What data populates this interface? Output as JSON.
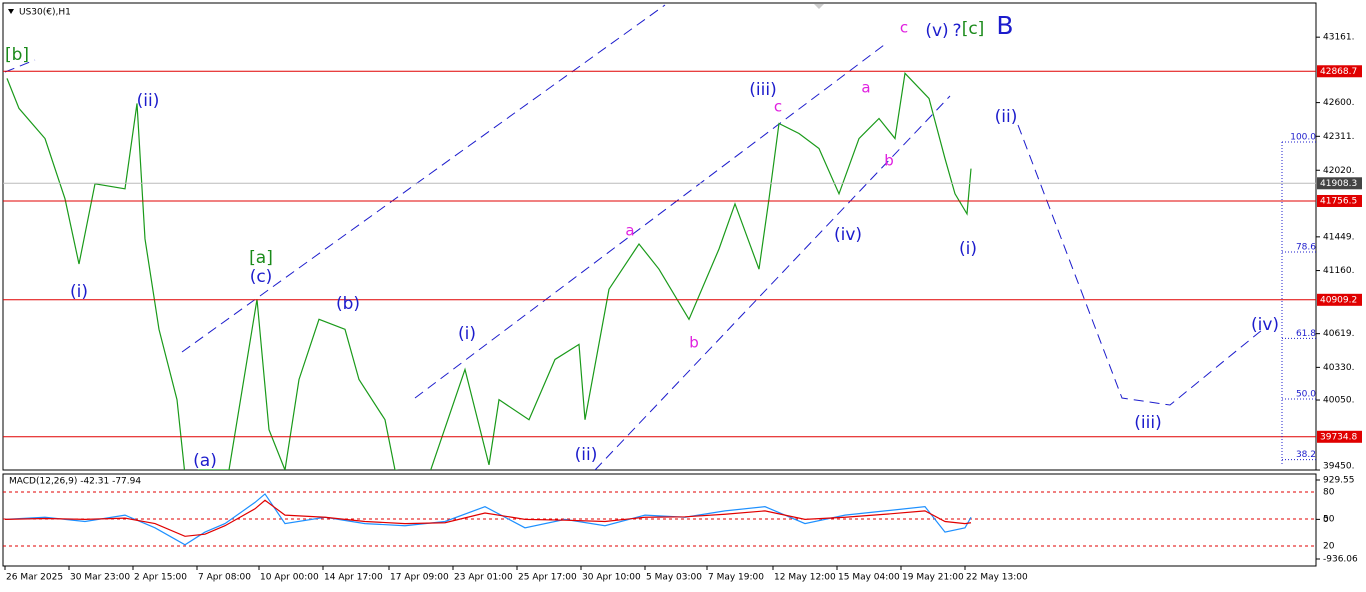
{
  "chart_data": [
    {
      "type": "line",
      "title": "US30(€),H1",
      "color": "#1a9a1a",
      "x": [
        1,
        7,
        20,
        30,
        37,
        45,
        60,
        66,
        70,
        77,
        86,
        90,
        97,
        112,
        126,
        132,
        140,
        147,
        157,
        170,
        177,
        190,
        195,
        212,
        230,
        242,
        247,
        262,
        275,
        287,
        290,
        302,
        317,
        327,
        342,
        357,
        365,
        377,
        382,
        387,
        397,
        407,
        417,
        427,
        437,
        445,
        450,
        462,
        470,
        475,
        481,
        483
      ],
      "values": [
        42808,
        42550,
        42292,
        41775,
        41216,
        41904,
        41861,
        42593,
        41431,
        40656,
        40053,
        39407,
        39450,
        39450,
        40914,
        39795,
        39450,
        40226,
        40742,
        40656,
        40226,
        39881,
        39450,
        39407,
        40312,
        39494,
        40053,
        39881,
        40398,
        40527,
        39881,
        41000,
        41388,
        41172,
        40742,
        41345,
        41732,
        41172,
        41775,
        42421,
        42335,
        42206,
        41818,
        42292,
        42464,
        42292,
        42851,
        42636,
        42120,
        41818,
        41646,
        42034
      ],
      "xlim": [
        0,
        655
      ],
      "xticks": [
        {
          "value": 0,
          "label": "26 Mar 2025"
        },
        {
          "value": 32,
          "label": "30 Mar 23:00"
        },
        {
          "value": 64,
          "label": "2 Apr 15:00"
        },
        {
          "value": 96,
          "label": "7 Apr 08:00"
        },
        {
          "value": 127,
          "label": "10 Apr 00:00"
        },
        {
          "value": 159,
          "label": "14 Apr 17:00"
        },
        {
          "value": 192,
          "label": "17 Apr 09:00"
        },
        {
          "value": 224,
          "label": "23 Apr 01:00"
        },
        {
          "value": 256,
          "label": "25 Apr 17:00"
        },
        {
          "value": 288,
          "label": "30 Apr 10:00"
        },
        {
          "value": 320,
          "label": "5 May 03:00"
        },
        {
          "value": 351,
          "label": "7 May 19:00"
        },
        {
          "value": 384,
          "label": "12 May 12:00"
        },
        {
          "value": 416,
          "label": "15 May 04:00"
        },
        {
          "value": 448,
          "label": "19 May 21:00"
        },
        {
          "value": 480,
          "label": "22 May 13:00"
        }
      ],
      "ylim": [
        39450,
        43454
      ],
      "yticks": [
        {
          "value": 43161,
          "label": "43161."
        },
        {
          "value": 42600,
          "label": "42600."
        },
        {
          "value": 42311,
          "label": "42311."
        },
        {
          "value": 42020,
          "label": "42020."
        },
        {
          "value": 41449,
          "label": "41449."
        },
        {
          "value": 41160,
          "label": "41160."
        },
        {
          "value": 40619,
          "label": "40619."
        },
        {
          "value": 40330,
          "label": "40330."
        },
        {
          "value": 40050,
          "label": "40050."
        },
        {
          "value": 39450,
          "label": "39450."
        }
      ],
      "hlines": [
        42868.7,
        41908.3,
        41756.5,
        40909.2,
        39734.8
      ],
      "hline_colors": [
        "#e00000",
        "#444444",
        "#e00000",
        "#e00000",
        "#e00000"
      ],
      "fib_levels": [
        {
          "value": 100,
          "label": "100.0"
        },
        {
          "value": 78.6,
          "label": "78.6"
        },
        {
          "value": 61.8,
          "label": "61.8"
        },
        {
          "value": 50,
          "label": "50.0"
        },
        {
          "value": 38.2,
          "label": "38.2"
        }
      ],
      "annotations": [
        {
          "text": "[b]",
          "color": "#1a8a1a"
        },
        {
          "text": "(i)",
          "color": "#1c1ccc"
        },
        {
          "text": "(ii)",
          "color": "#1c1ccc"
        },
        {
          "text": "(a)",
          "color": "#1c1ccc"
        },
        {
          "text": "[a]",
          "color": "#1a8a1a"
        },
        {
          "text": "(c)",
          "color": "#1c1ccc"
        },
        {
          "text": "(b)",
          "color": "#1c1ccc"
        },
        {
          "text": "(i)",
          "color": "#1c1ccc"
        },
        {
          "text": "(ii)",
          "color": "#1c1ccc"
        },
        {
          "text": "a",
          "color": "#e020e0"
        },
        {
          "text": "b",
          "color": "#e020e0"
        },
        {
          "text": "(iii)",
          "color": "#1c1ccc"
        },
        {
          "text": "c",
          "color": "#e020e0"
        },
        {
          "text": "(iv)",
          "color": "#1c1ccc"
        },
        {
          "text": "a",
          "color": "#e020e0"
        },
        {
          "text": "b",
          "color": "#e020e0"
        },
        {
          "text": "c",
          "color": "#e020e0"
        },
        {
          "text": "(v)",
          "color": "#1c1ccc"
        },
        {
          "text": "?",
          "color": "#1c1ccc"
        },
        {
          "text": "[c]",
          "color": "#1a8a1a"
        },
        {
          "text": "B",
          "color": "#1c1ccc"
        },
        {
          "text": "(i)",
          "color": "#1c1ccc"
        },
        {
          "text": "(ii)",
          "color": "#1c1ccc"
        },
        {
          "text": "(iii)",
          "color": "#1c1ccc"
        },
        {
          "text": "(iv)",
          "color": "#1c1ccc"
        }
      ]
    },
    {
      "type": "line",
      "title": "MACD(12,26,9) -42.31 -77.94",
      "x": [
        0,
        20,
        40,
        60,
        75,
        90,
        100,
        110,
        125,
        130,
        140,
        160,
        180,
        200,
        220,
        240,
        260,
        280,
        300,
        320,
        340,
        360,
        380,
        400,
        420,
        440,
        460,
        470,
        480,
        483
      ],
      "series": [
        {
          "color": "#1e90ff",
          "values": [
            0,
            50,
            -50,
            100,
            -200,
            -600,
            -300,
            -100,
            400,
            600,
            -100,
            50,
            -100,
            -150,
            -50,
            300,
            -200,
            0,
            -150,
            100,
            50,
            200,
            300,
            -100,
            100,
            200,
            300,
            -300,
            -200,
            50
          ]
        },
        {
          "color": "#e00000",
          "values": [
            0,
            20,
            0,
            30,
            -100,
            -400,
            -350,
            -150,
            250,
            450,
            100,
            50,
            -50,
            -100,
            -80,
            150,
            0,
            -20,
            -50,
            50,
            60,
            120,
            200,
            0,
            50,
            120,
            200,
            -50,
            -100,
            -80
          ]
        }
      ],
      "xlim": [
        0,
        655
      ],
      "ylim": [
        -936.06,
        929.55
      ],
      "yticks": [
        929.55,
        0,
        -936.06
      ],
      "y2lim": [
        0,
        100
      ],
      "y2ticks": [
        80,
        50,
        20
      ]
    }
  ]
}
